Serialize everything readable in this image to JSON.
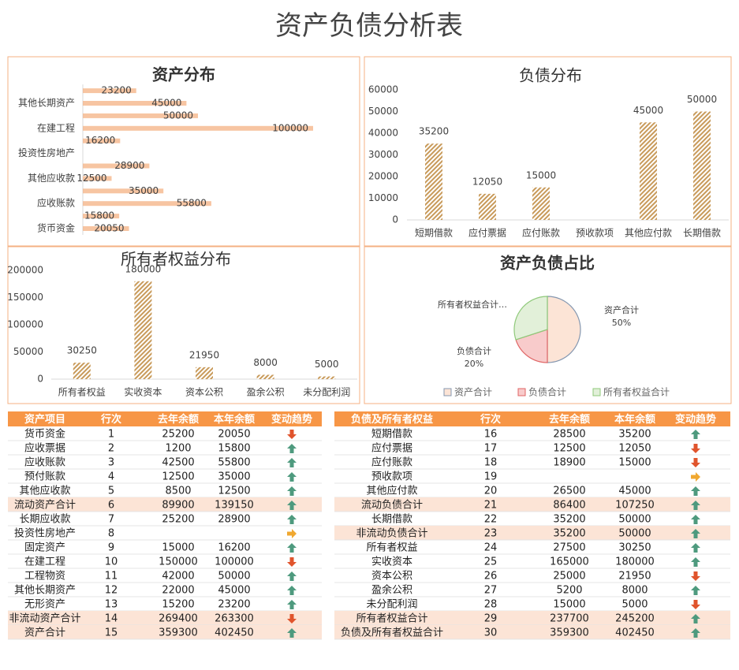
{
  "title": "资产负债分析表",
  "chart_data": [
    {
      "type": "hbar",
      "title": "资产分布",
      "categories": [
        "货币资金",
        null,
        "应收账款",
        null,
        "其他应收款",
        null,
        "投资性房地产",
        null,
        "在建工程",
        null,
        "其他长期资产",
        null
      ],
      "values": [
        20050,
        15800,
        55800,
        35000,
        12500,
        28900,
        null,
        16200,
        100000,
        50000,
        45000,
        23200
      ],
      "color": "#f4b183",
      "xlim": [
        0,
        100000
      ]
    },
    {
      "type": "bar",
      "title": "负债分布",
      "categories": [
        "短期借款",
        "应付票据",
        "应付账款",
        "预收款项",
        "其他应付款",
        "长期借款"
      ],
      "values": [
        35200,
        12050,
        15000,
        null,
        45000,
        50000
      ],
      "color": "#c89a5a",
      "ylim": [
        0,
        60000
      ],
      "yticks": [
        0,
        10000,
        20000,
        30000,
        40000,
        50000,
        60000
      ]
    },
    {
      "type": "bar",
      "title": "所有者权益分布",
      "categories": [
        "所有者权益",
        "实收资本",
        "资本公积",
        "盈余公积",
        "未分配利润"
      ],
      "values": [
        30250,
        180000,
        21950,
        8000,
        5000
      ],
      "color": "#c89a5a",
      "ylim": [
        0,
        200000
      ],
      "yticks": [
        0,
        50000,
        100000,
        150000,
        200000
      ]
    },
    {
      "type": "pie",
      "title": "资产负债占比",
      "categories": [
        "资产合计",
        "负债合计",
        "所有者权益合计"
      ],
      "slice_labels": [
        "资产合计",
        "负债合计",
        "所有者权益合计…"
      ],
      "values": [
        50,
        20,
        30
      ],
      "value_labels": [
        "50%",
        "20%",
        null
      ],
      "colors": [
        "#fce4d6",
        "#f8cbcb",
        "#e2f0d9"
      ],
      "edge_colors": [
        "#8497b0",
        "#e06666",
        "#8fc97a"
      ]
    }
  ],
  "asset_table": {
    "header": [
      "资产项目",
      "行次",
      "去年余额",
      "本年余额",
      "变动趋势"
    ],
    "rows": [
      [
        "货币资金",
        1,
        25200,
        20050
      ],
      [
        "应收票据",
        2,
        1200,
        15800
      ],
      [
        "应收账款",
        3,
        42500,
        55800
      ],
      [
        "预付账款",
        4,
        12500,
        35000
      ],
      [
        "其他应收款",
        5,
        8500,
        12500
      ],
      [
        "流动资产合计",
        6,
        89900,
        139150
      ],
      [
        "长期应收款",
        7,
        25200,
        28900
      ],
      [
        "投资性房地产",
        8,
        null,
        null
      ],
      [
        "固定资产",
        9,
        15000,
        16200
      ],
      [
        "在建工程",
        10,
        150000,
        100000
      ],
      [
        "工程物资",
        11,
        42000,
        50000
      ],
      [
        "其他长期资产",
        12,
        22000,
        45000
      ],
      [
        "无形资产",
        13,
        15200,
        23200
      ],
      [
        "非流动资产合计",
        14,
        269400,
        263300
      ],
      [
        "资产合计",
        15,
        359300,
        402450
      ]
    ]
  },
  "liability_table": {
    "header": [
      "负债及所有者权益",
      "行次",
      "去年余额",
      "本年余额",
      "变动趋势"
    ],
    "rows": [
      [
        "短期借款",
        16,
        28500,
        35200
      ],
      [
        "应付票据",
        17,
        12500,
        12050
      ],
      [
        "应付账款",
        18,
        18900,
        15000
      ],
      [
        "预收款项",
        19,
        null,
        null
      ],
      [
        "其他应付款",
        20,
        26500,
        45000
      ],
      [
        "流动负债合计",
        21,
        86400,
        107250
      ],
      [
        "长期借款",
        22,
        35200,
        50000
      ],
      [
        "非流动负债合计",
        23,
        35200,
        50000
      ],
      [
        "所有者权益",
        24,
        27500,
        30250
      ],
      [
        "实收资本",
        25,
        165000,
        180000
      ],
      [
        "资本公积",
        26,
        25000,
        21950
      ],
      [
        "盈余公积",
        27,
        5200,
        8000
      ],
      [
        "未分配利润",
        28,
        15000,
        5000
      ],
      [
        "所有者权益合计",
        29,
        237700,
        245200
      ],
      [
        "负债及所有者权益合计",
        30,
        359300,
        402450
      ]
    ]
  }
}
